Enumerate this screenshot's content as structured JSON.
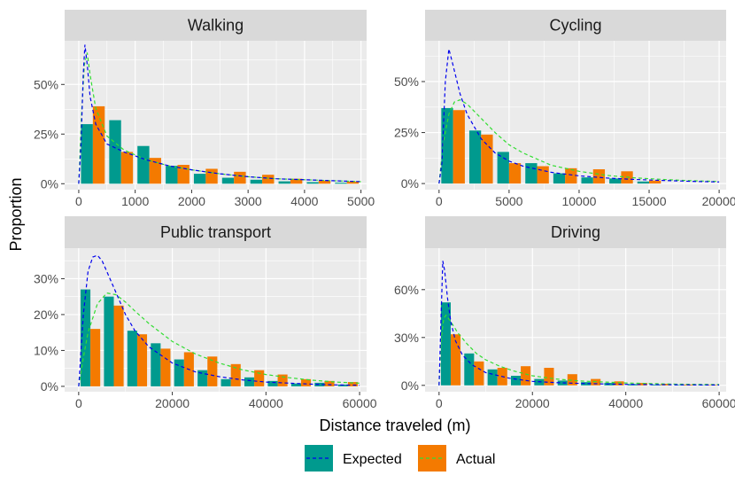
{
  "colors": {
    "panel_bg": "#ebebeb",
    "grid": "#ffffff",
    "strip_bg": "#d9d9d9",
    "expected_bar": "#009a8e",
    "actual_bar": "#f47a00",
    "expected_line": "#0000ee",
    "actual_line": "#33dd33"
  },
  "chart_data": {
    "type": "bar",
    "xlabel": "Distance traveled (m)",
    "ylabel": "Proportion",
    "legend": {
      "position": "bottom",
      "entries": [
        {
          "name": "Expected",
          "bar": "expected_bar",
          "line": "expected_line"
        },
        {
          "name": "Actual",
          "bar": "actual_bar",
          "line": "actual_line"
        }
      ]
    },
    "panels": [
      {
        "title": "Walking",
        "xlim": [
          -250,
          5100
        ],
        "ylim": [
          -0.03,
          0.72
        ],
        "x_breaks": [
          0,
          1000,
          2000,
          3000,
          4000,
          5000
        ],
        "x_labels": [
          "0",
          "1000",
          "2000",
          "3000",
          "4000",
          "5000"
        ],
        "y_breaks": [
          0,
          0.25,
          0.5
        ],
        "y_labels": [
          "0%",
          "25%",
          "50%"
        ],
        "bin_width": 500,
        "bin_centers": [
          250,
          750,
          1250,
          1750,
          2250,
          2750,
          3250,
          3750,
          4250,
          4750
        ],
        "expected": [
          0.3,
          0.32,
          0.19,
          0.09,
          0.05,
          0.03,
          0.02,
          0.012,
          0.008,
          0.005
        ],
        "actual": [
          0.39,
          0.16,
          0.13,
          0.095,
          0.075,
          0.06,
          0.045,
          0.025,
          0.015,
          0.01
        ],
        "expected_curve": {
          "x": [
            0,
            40,
            80,
            110,
            150,
            200,
            300,
            500,
            800,
            1200,
            1600,
            2000,
            2500,
            3000,
            3500,
            4000,
            4500,
            5000
          ],
          "y": [
            0,
            0.2,
            0.55,
            0.7,
            0.6,
            0.44,
            0.3,
            0.2,
            0.16,
            0.12,
            0.09,
            0.07,
            0.05,
            0.035,
            0.025,
            0.02,
            0.015,
            0.01
          ]
        },
        "actual_curve": {
          "x": [
            0,
            50,
            100,
            150,
            200,
            300,
            500,
            800,
            1200,
            1600,
            2000,
            2500,
            3000,
            3500,
            4000,
            4500,
            5000
          ],
          "y": [
            0,
            0.35,
            0.6,
            0.66,
            0.55,
            0.38,
            0.24,
            0.17,
            0.12,
            0.09,
            0.07,
            0.05,
            0.035,
            0.025,
            0.02,
            0.015,
            0.01
          ]
        }
      },
      {
        "title": "Cycling",
        "xlim": [
          -1000,
          20500
        ],
        "ylim": [
          -0.03,
          0.7
        ],
        "x_breaks": [
          0,
          5000,
          10000,
          15000,
          20000
        ],
        "x_labels": [
          "0",
          "5000",
          "10000",
          "15000",
          "20000"
        ],
        "y_breaks": [
          0,
          0.25,
          0.5
        ],
        "y_labels": [
          "0%",
          "25%",
          "50%"
        ],
        "bin_width": 2000,
        "bin_centers": [
          1000,
          3000,
          5000,
          7000,
          9000,
          11000,
          13000,
          15000
        ],
        "expected": [
          0.37,
          0.26,
          0.155,
          0.1,
          0.05,
          0.03,
          0.025,
          0.01
        ],
        "actual": [
          0.36,
          0.24,
          0.1,
          0.085,
          0.075,
          0.07,
          0.06,
          0.015
        ],
        "expected_curve": {
          "x": [
            0,
            200,
            450,
            700,
            1000,
            1500,
            2000,
            3000,
            4000,
            5000,
            6000,
            8000,
            10000,
            12000,
            14000,
            16000,
            18000,
            20000
          ],
          "y": [
            0,
            0.1,
            0.5,
            0.66,
            0.58,
            0.44,
            0.34,
            0.22,
            0.15,
            0.11,
            0.085,
            0.055,
            0.038,
            0.027,
            0.02,
            0.015,
            0.011,
            0.008
          ]
        },
        "actual_curve": {
          "x": [
            0,
            300,
            700,
            1100,
            1500,
            2000,
            3000,
            4000,
            5000,
            6000,
            8000,
            10000,
            12000,
            14000,
            16000,
            18000,
            20000
          ],
          "y": [
            0,
            0.2,
            0.34,
            0.4,
            0.41,
            0.39,
            0.32,
            0.25,
            0.19,
            0.15,
            0.09,
            0.06,
            0.04,
            0.028,
            0.02,
            0.014,
            0.01
          ]
        }
      },
      {
        "title": "Public transport",
        "xlim": [
          -3000,
          61500
        ],
        "ylim": [
          -0.015,
          0.385
        ],
        "x_breaks": [
          0,
          20000,
          40000,
          60000
        ],
        "x_labels": [
          "0",
          "20000",
          "40000",
          "60000"
        ],
        "y_breaks": [
          0,
          0.1,
          0.2,
          0.3
        ],
        "y_labels": [
          "0%",
          "10%",
          "20%",
          "30%"
        ],
        "bin_width": 5000,
        "bin_centers": [
          2500,
          7500,
          12500,
          17500,
          22500,
          27500,
          32500,
          37500,
          42500,
          47500,
          52500,
          57500
        ],
        "expected": [
          0.27,
          0.25,
          0.155,
          0.12,
          0.075,
          0.045,
          0.02,
          0.025,
          0.015,
          0.008,
          0.01,
          0.005
        ],
        "actual": [
          0.16,
          0.225,
          0.145,
          0.105,
          0.095,
          0.083,
          0.062,
          0.045,
          0.033,
          0.02,
          0.015,
          0.012
        ],
        "expected_curve": {
          "x": [
            0,
            1000,
            2000,
            3000,
            4000,
            5000,
            6000,
            8000,
            10000,
            12000,
            15000,
            20000,
            25000,
            30000,
            35000,
            40000,
            45000,
            50000,
            55000,
            60000
          ],
          "y": [
            0,
            0.2,
            0.32,
            0.36,
            0.365,
            0.35,
            0.32,
            0.26,
            0.2,
            0.155,
            0.11,
            0.065,
            0.04,
            0.027,
            0.018,
            0.012,
            0.009,
            0.006,
            0.004,
            0.003
          ]
        },
        "actual_curve": {
          "x": [
            0,
            1000,
            2000,
            4000,
            6000,
            8000,
            10000,
            12000,
            15000,
            20000,
            25000,
            30000,
            35000,
            40000,
            45000,
            50000,
            55000,
            60000
          ],
          "y": [
            0,
            0.08,
            0.15,
            0.23,
            0.26,
            0.255,
            0.235,
            0.21,
            0.175,
            0.125,
            0.09,
            0.065,
            0.046,
            0.033,
            0.024,
            0.017,
            0.012,
            0.009
          ]
        }
      },
      {
        "title": "Driving",
        "xlim": [
          -3000,
          61500
        ],
        "ylim": [
          -0.04,
          0.86
        ],
        "x_breaks": [
          0,
          20000,
          40000,
          60000
        ],
        "x_labels": [
          "0",
          "20000",
          "40000",
          "60000"
        ],
        "y_breaks": [
          0,
          0.3,
          0.6
        ],
        "y_labels": [
          "0%",
          "30%",
          "60%"
        ],
        "bin_width": 5000,
        "bin_centers": [
          2500,
          7500,
          12500,
          17500,
          22500,
          27500,
          32500,
          37500,
          42500,
          47500,
          52500,
          57500
        ],
        "expected": [
          0.52,
          0.2,
          0.1,
          0.06,
          0.04,
          0.03,
          0.02,
          0.015,
          0.008,
          0.005,
          0.003,
          0.002
        ],
        "actual": [
          0.32,
          0.15,
          0.11,
          0.12,
          0.11,
          0.07,
          0.04,
          0.025,
          0.015,
          0.01,
          0.005,
          0.003
        ],
        "expected_curve": {
          "x": [
            0,
            300,
            800,
            1200,
            1800,
            2500,
            3500,
            5000,
            7000,
            10000,
            15000,
            20000,
            25000,
            30000,
            40000,
            50000,
            60000
          ],
          "y": [
            0,
            0.3,
            0.78,
            0.72,
            0.55,
            0.4,
            0.28,
            0.19,
            0.13,
            0.08,
            0.045,
            0.025,
            0.017,
            0.012,
            0.006,
            0.004,
            0.002
          ]
        },
        "actual_curve": {
          "x": [
            0,
            500,
            1000,
            1500,
            2500,
            4000,
            6000,
            8000,
            10000,
            13000,
            16000,
            20000,
            25000,
            30000,
            40000,
            50000,
            60000
          ],
          "y": [
            0,
            0.3,
            0.42,
            0.44,
            0.4,
            0.33,
            0.26,
            0.2,
            0.16,
            0.12,
            0.09,
            0.06,
            0.04,
            0.028,
            0.015,
            0.008,
            0.005
          ]
        }
      }
    ]
  }
}
